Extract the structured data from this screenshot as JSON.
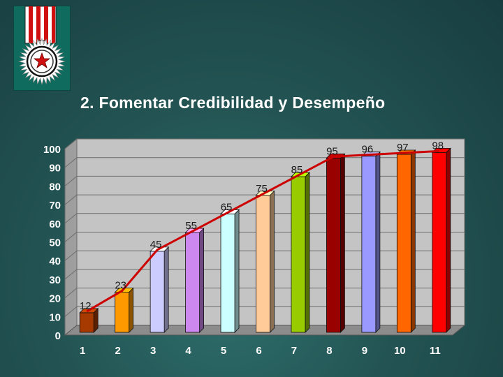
{
  "slide": {
    "title": "2. Fomentar Credibilidad y Desempeño",
    "emblem_icon": "medal-star-icon"
  },
  "chart_data": {
    "type": "bar",
    "subtype": "3d-column-with-line-overlay",
    "categories": [
      "1",
      "2",
      "3",
      "4",
      "5",
      "6",
      "7",
      "8",
      "9",
      "10",
      "11"
    ],
    "values": [
      12,
      23,
      45,
      55,
      65,
      75,
      85,
      95,
      96,
      97,
      98
    ],
    "data_labels": [
      "12",
      "23",
      "45",
      "55",
      "65",
      "75",
      "85",
      "95",
      "96",
      "97",
      "98"
    ],
    "bar_colors": [
      "#a63a00",
      "#ff9900",
      "#ccccff",
      "#cc88ee",
      "#ccffff",
      "#ffcc99",
      "#99cc00",
      "#990000",
      "#9999ff",
      "#ff6600",
      "#ff0000"
    ],
    "line_overlay": {
      "values": [
        12,
        23,
        45,
        55,
        65,
        75,
        85,
        95,
        96,
        97,
        98
      ],
      "color": "#cc0000"
    },
    "yticks": [
      "0",
      "10",
      "20",
      "30",
      "40",
      "50",
      "60",
      "70",
      "80",
      "90",
      "100"
    ],
    "ylim": [
      0,
      100
    ],
    "grid": true,
    "title": "",
    "xlabel": "",
    "ylabel": ""
  }
}
